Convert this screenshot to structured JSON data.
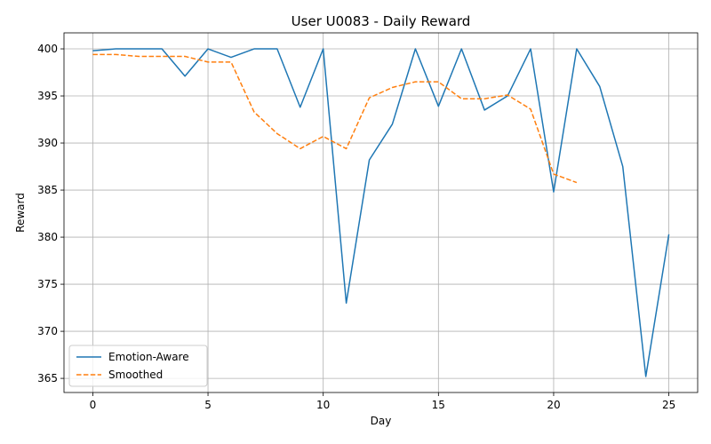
{
  "chart_data": {
    "type": "line",
    "title": "User U0083 - Daily Reward",
    "xlabel": "Day",
    "ylabel": "Reward",
    "xlim": [
      -1.25,
      26.25
    ],
    "ylim": [
      363.5,
      401.7
    ],
    "xticks": [
      0,
      5,
      10,
      15,
      20,
      25
    ],
    "yticks": [
      365,
      370,
      375,
      380,
      385,
      390,
      395,
      400
    ],
    "grid": true,
    "legend_position": "lower-left",
    "series": [
      {
        "name": "Emotion-Aware",
        "color": "#1f77b4",
        "style": "solid",
        "x": [
          0,
          1,
          2,
          3,
          4,
          5,
          6,
          7,
          8,
          9,
          10,
          11,
          12,
          13,
          14,
          15,
          16,
          17,
          18,
          19,
          20,
          21,
          22,
          23,
          24,
          25
        ],
        "y": [
          399.8,
          400.0,
          400.0,
          400.0,
          397.1,
          400.0,
          399.1,
          400.0,
          400.0,
          393.8,
          400.0,
          373.0,
          388.2,
          392.0,
          400.0,
          393.9,
          400.0,
          393.5,
          395.0,
          400.0,
          384.8,
          400.0,
          396.0,
          387.5,
          365.2,
          380.3
        ]
      },
      {
        "name": "Smoothed",
        "color": "#ff7f0e",
        "style": "dashed",
        "x": [
          0,
          1,
          2,
          3,
          4,
          5,
          6,
          7,
          8,
          9,
          10,
          11,
          12,
          13,
          14,
          15,
          16,
          17,
          18,
          19,
          20,
          21
        ],
        "y": [
          399.4,
          399.4,
          399.2,
          399.2,
          399.2,
          398.6,
          398.6,
          393.3,
          391.0,
          389.4,
          390.7,
          389.4,
          394.8,
          395.9,
          396.5,
          396.5,
          394.7,
          394.7,
          395.1,
          393.6,
          386.7,
          385.8
        ]
      }
    ]
  }
}
